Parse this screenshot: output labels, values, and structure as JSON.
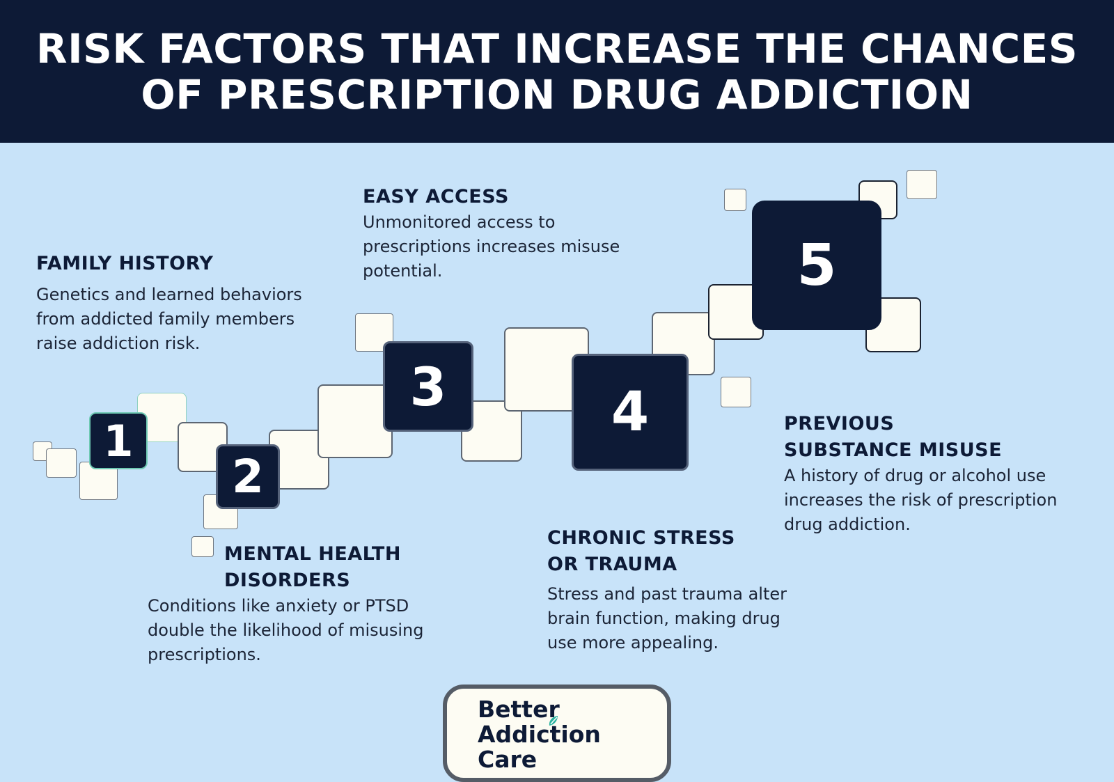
{
  "header": {
    "title": "RISK FACTORS THAT INCREASE THE CHANCES OF PRESCRIPTION DRUG ADDICTION"
  },
  "steps": [
    {
      "number": "1",
      "title": "FAMILY HISTORY",
      "text": "Genetics and learned behaviors from addicted family members raise addiction risk."
    },
    {
      "number": "2",
      "title": "MENTAL HEALTH DISORDERS",
      "text": "Conditions like anxiety or PTSD double the likelihood of misusing prescriptions."
    },
    {
      "number": "3",
      "title": "EASY ACCESS",
      "text": "Unmonitored access to prescriptions increases misuse potential."
    },
    {
      "number": "4",
      "title": "CHRONIC STRESS OR TRAUMA",
      "text": "Stress and past trauma alter brain function, making drug use more appealing."
    },
    {
      "number": "5",
      "title": "PREVIOUS SUBSTANCE MISUSE",
      "text": "A history of drug or alcohol use increases the risk of prescription drug addiction."
    }
  ],
  "logo": {
    "line1": "Better",
    "line2": "Addiction Care",
    "icon": "leaf-icon",
    "icon_colors": [
      "#2bb3a0",
      "#6fd6c4"
    ]
  },
  "colors": {
    "header_bg": "#0d1a36",
    "page_bg": "#c8e3f9",
    "square_fill": "#fdfcf3",
    "number_fill": "#0d1a36"
  }
}
